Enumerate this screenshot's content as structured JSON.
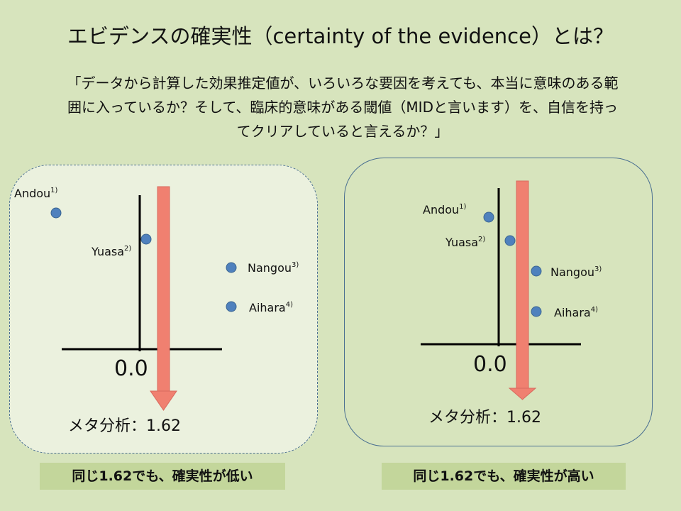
{
  "title": "エビデンスの確実性（certainty of the evidence）とは？",
  "quote_lines": [
    "「データから計算した効果推定値が、いろいろな要因を考えても、本当に意味のある範",
    "囲に入っているか？そして、臨床的意味がある閾値（MIDと言います）を、自信を持っ",
    "てクリアしていると言えるか？」"
  ],
  "axis_label": "0.0",
  "meta_label": "メタ分析：1.62",
  "panels": [
    {
      "studies": [
        {
          "name": "Andou",
          "ref": "1)"
        },
        {
          "name": "Yuasa",
          "ref": "2)"
        },
        {
          "name": "Nangou",
          "ref": "3)"
        },
        {
          "name": "Aihara",
          "ref": "4)"
        }
      ],
      "caption": "同じ1.62でも、確実性が低い"
    },
    {
      "studies": [
        {
          "name": "Andou",
          "ref": "1)"
        },
        {
          "name": "Yuasa",
          "ref": "2)"
        },
        {
          "name": "Nangou",
          "ref": "3)"
        },
        {
          "name": "Aihara",
          "ref": "4)"
        }
      ],
      "caption": "同じ1.62でも、確実性が高い"
    }
  ],
  "colors": {
    "background": "#d7e4bd",
    "point": "#4f81bd",
    "arrow": "#f08070",
    "caption_bg": "#c3d69b"
  }
}
